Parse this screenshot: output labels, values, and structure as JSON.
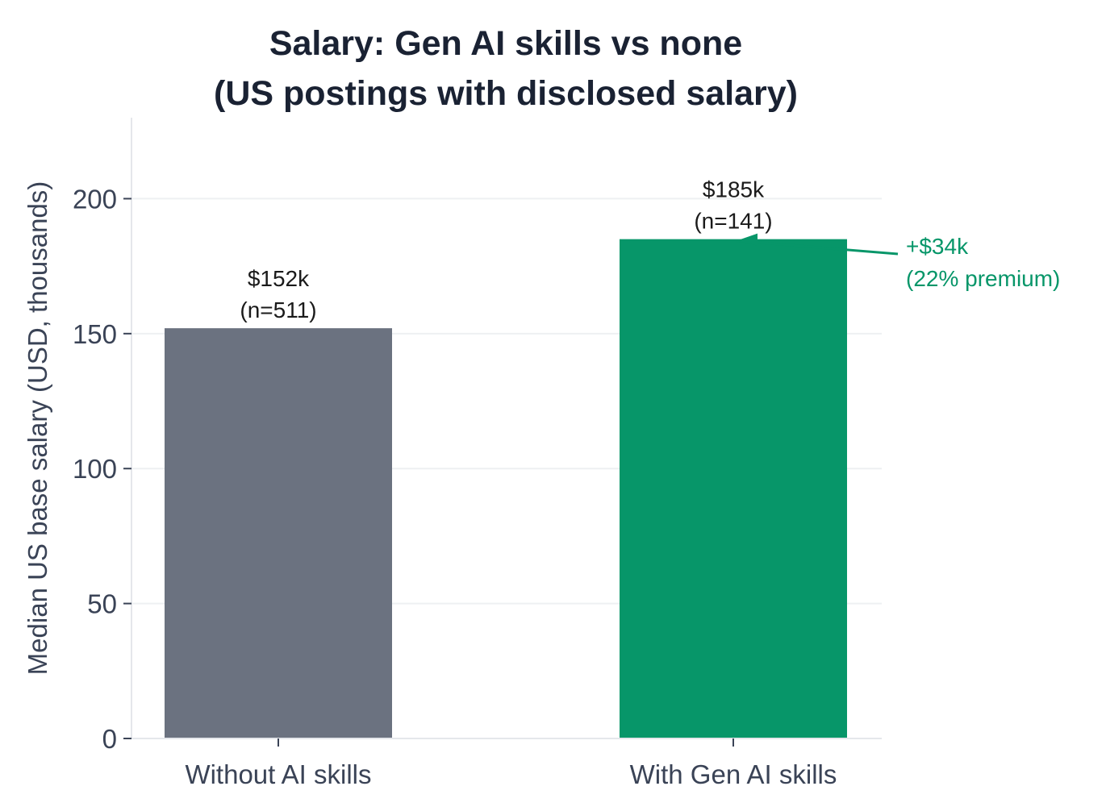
{
  "chart_data": {
    "type": "bar",
    "title": [
      "Salary: Gen AI skills vs none",
      "(US postings with disclosed salary)"
    ],
    "xlabel": "",
    "ylabel": "Median US base salary (USD, thousands)",
    "ylim": [
      0,
      230
    ],
    "yticks": [
      0,
      50,
      100,
      150,
      200
    ],
    "grid": true,
    "categories": [
      "Without AI skills",
      "With Gen AI skills"
    ],
    "values": [
      152,
      185
    ],
    "colors": [
      "#6b7280",
      "#079669"
    ],
    "data_labels": [
      [
        "$152k",
        "(n=511)"
      ],
      [
        "$185k",
        "(n=141)"
      ]
    ],
    "annotation": {
      "lines": [
        "+$34k",
        "(22% premium)"
      ],
      "color": "#079669"
    }
  }
}
